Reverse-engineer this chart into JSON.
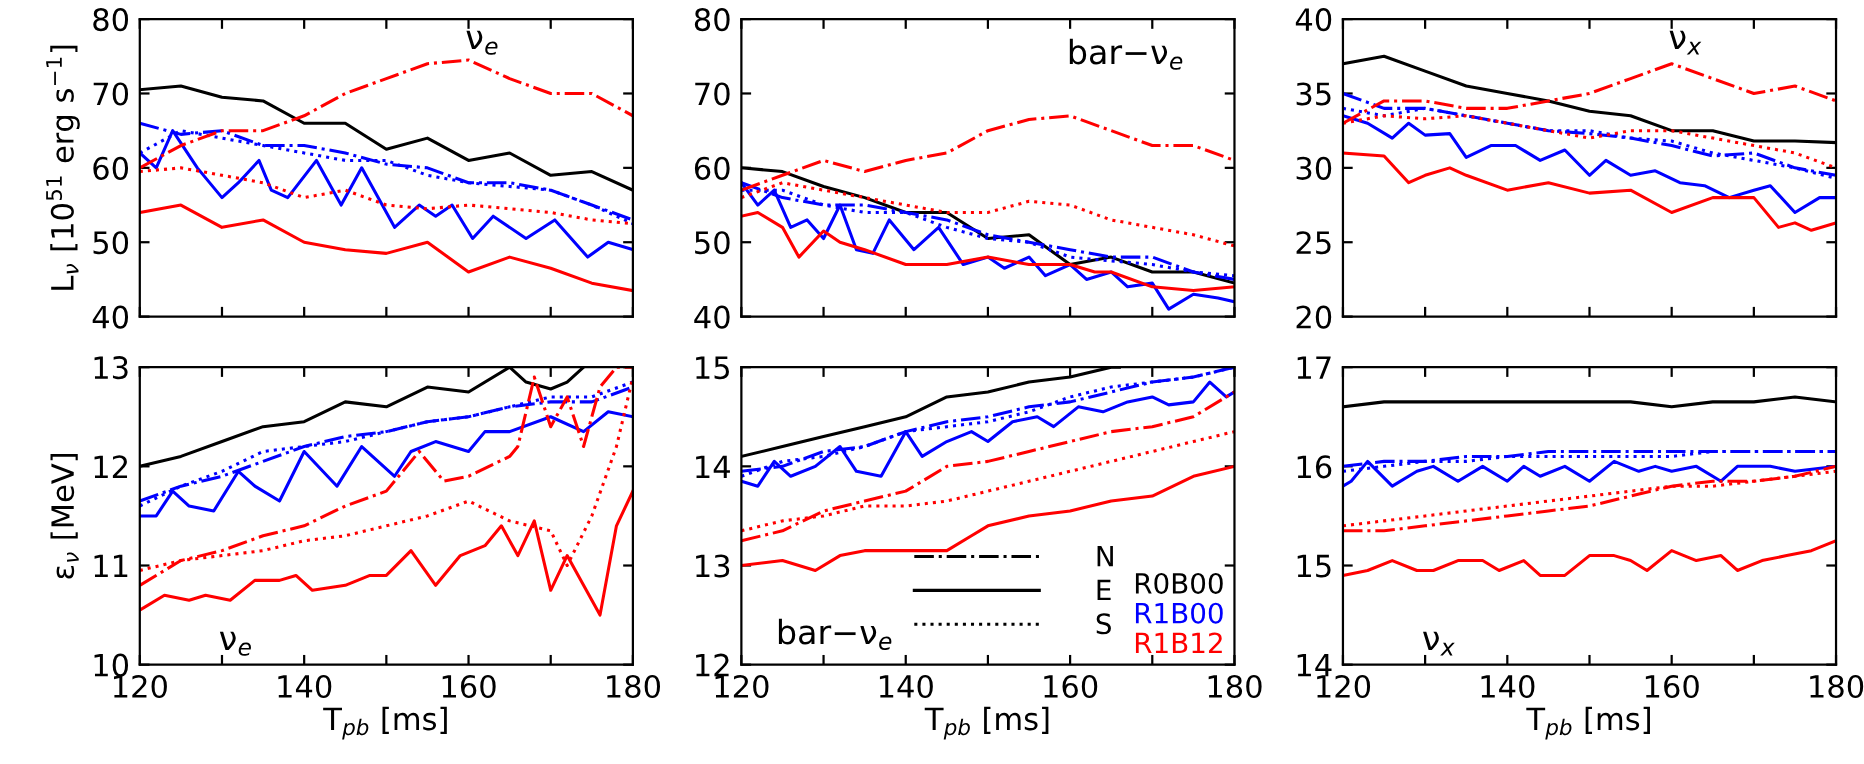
{
  "chart_data": [
    {
      "type": "line",
      "ylabel": "L$_{ν}$ [10$^{51}$ erg s$^{−1}$]",
      "annotations": [
        "ν$_{e}$"
      ],
      "x": [
        120,
        125,
        130,
        135,
        140,
        145,
        150,
        155,
        160,
        165,
        170,
        175,
        180
      ],
      "xlim": [
        120,
        180
      ],
      "xticks": [
        120,
        {
          "value": 130,
          "label": null
        },
        140,
        {
          "value": 150,
          "label": null
        },
        160,
        {
          "value": 170,
          "label": null
        },
        180
      ],
      "ylim": [
        40,
        80
      ],
      "yticks": [
        40,
        50,
        60,
        70,
        80
      ],
      "tick_labels": "y",
      "series": [
        {
          "color": "#000000",
          "line_style": "solid",
          "values": [
            70.5,
            71,
            69.5,
            69,
            66,
            66,
            62.5,
            64,
            61,
            62,
            59,
            59.5,
            57
          ]
        },
        {
          "color": "#0000ff",
          "line_style": "dashdot",
          "values": [
            66,
            64.5,
            65,
            63,
            63,
            62,
            60.5,
            60,
            58,
            58,
            57,
            55,
            53
          ]
        },
        {
          "color": "#0000ff",
          "line_style": "solid",
          "x": [
            120,
            122,
            124,
            127,
            130,
            132,
            134.5,
            136,
            138,
            141.5,
            144.5,
            147,
            151,
            154,
            156,
            158,
            160.5,
            163,
            167,
            170.5,
            174.5,
            177,
            180
          ],
          "values": [
            62,
            60,
            65,
            60,
            56,
            58,
            61,
            57,
            56,
            61,
            55,
            60,
            52,
            55,
            53.5,
            55,
            50.5,
            53.5,
            50.5,
            53,
            48,
            50,
            49
          ]
        },
        {
          "color": "#0000ff",
          "line_style": "dotted",
          "values": [
            62,
            65,
            64,
            63,
            62,
            61,
            61,
            59,
            58,
            57.5,
            57,
            55,
            52.5
          ]
        },
        {
          "color": "#ff0000",
          "line_style": "dashdot",
          "values": [
            60,
            63,
            65,
            65,
            67,
            70,
            72,
            74,
            74.5,
            72,
            70,
            70,
            67
          ]
        },
        {
          "color": "#ff0000",
          "line_style": "solid",
          "values": [
            54,
            55,
            52,
            53,
            50,
            49,
            48.5,
            50,
            46,
            48,
            46.5,
            44.5,
            43.5
          ]
        },
        {
          "color": "#ff0000",
          "line_style": "dotted",
          "values": [
            59.5,
            60,
            59,
            58,
            56,
            57,
            55,
            54.5,
            55,
            54.5,
            54,
            53,
            52.5
          ]
        }
      ]
    },
    {
      "type": "line",
      "annotations": [
        "bar−ν$_{e}$"
      ],
      "x": [
        120,
        125,
        130,
        135,
        140,
        145,
        150,
        155,
        160,
        165,
        170,
        175,
        180
      ],
      "xlim": [
        120,
        180
      ],
      "xticks": [
        120,
        {
          "value": 130,
          "label": null
        },
        140,
        {
          "value": 150,
          "label": null
        },
        160,
        {
          "value": 170,
          "label": null
        },
        180
      ],
      "ylim": [
        40,
        80
      ],
      "yticks": [
        40,
        50,
        60,
        70,
        80
      ],
      "tick_labels": "y",
      "series": [
        {
          "color": "#000000",
          "line_style": "solid",
          "values": [
            60,
            59.5,
            57.5,
            56,
            54,
            54,
            50.5,
            51,
            47,
            48,
            46,
            46,
            44.5
          ]
        },
        {
          "color": "#0000ff",
          "line_style": "dashdot",
          "values": [
            58,
            56,
            55,
            55,
            54,
            53,
            51,
            50,
            49,
            48,
            48,
            46,
            45
          ]
        },
        {
          "color": "#0000ff",
          "line_style": "solid",
          "x": [
            120,
            122,
            124,
            126,
            128,
            130,
            132,
            134,
            136,
            138,
            141,
            144,
            147,
            150,
            152,
            155,
            157,
            160,
            162,
            165,
            167,
            170,
            172,
            175,
            178,
            180
          ],
          "values": [
            58,
            55,
            57,
            52,
            53,
            50.5,
            55,
            49,
            48.5,
            53,
            49,
            52,
            47,
            48,
            46.5,
            48,
            45.5,
            47,
            45,
            46,
            44,
            44.5,
            41,
            43,
            42.5,
            42
          ]
        },
        {
          "color": "#0000ff",
          "line_style": "dotted",
          "values": [
            57,
            57,
            55,
            54,
            54,
            52,
            50.5,
            50,
            48,
            47.5,
            47,
            46,
            45.5
          ]
        },
        {
          "color": "#ff0000",
          "line_style": "dashdot",
          "values": [
            57,
            59,
            61,
            59.5,
            61,
            62,
            65,
            66.5,
            67,
            65,
            63,
            63,
            61
          ]
        },
        {
          "color": "#ff0000",
          "line_style": "solid",
          "x": [
            120,
            122,
            125,
            127,
            130,
            132,
            135,
            140,
            145,
            150,
            155,
            160,
            163,
            165,
            170,
            175,
            180
          ],
          "values": [
            53.5,
            54,
            52,
            48,
            51.5,
            50,
            49,
            47,
            47,
            48,
            47,
            47,
            46,
            46,
            44,
            43.5,
            44
          ]
        },
        {
          "color": "#ff0000",
          "line_style": "dotted",
          "values": [
            56,
            58,
            57,
            56,
            55,
            54,
            54,
            55.5,
            55,
            53,
            52,
            51,
            49.5
          ]
        }
      ]
    },
    {
      "type": "line",
      "annotations": [
        "ν$_{x}$"
      ],
      "x": [
        120,
        125,
        130,
        135,
        140,
        145,
        150,
        155,
        160,
        165,
        170,
        175,
        180
      ],
      "xlim": [
        120,
        180
      ],
      "xticks": [
        120,
        {
          "value": 130,
          "label": null
        },
        140,
        {
          "value": 150,
          "label": null
        },
        160,
        {
          "value": 170,
          "label": null
        },
        180
      ],
      "ylim": [
        20,
        40
      ],
      "yticks": [
        20,
        25,
        30,
        35,
        40
      ],
      "tick_labels": "y",
      "series": [
        {
          "color": "#000000",
          "line_style": "solid",
          "values": [
            37,
            37.5,
            36.5,
            35.5,
            35,
            34.5,
            33.8,
            33.5,
            32.5,
            32.5,
            31.8,
            31.8,
            31.7
          ]
        },
        {
          "color": "#0000ff",
          "line_style": "dashdot",
          "values": [
            35,
            34,
            34,
            33.5,
            33,
            32.5,
            32.3,
            32,
            31.5,
            30.8,
            31,
            30,
            29.5
          ]
        },
        {
          "color": "#0000ff",
          "line_style": "solid",
          "x": [
            120,
            123,
            126,
            128,
            130,
            133,
            135,
            138,
            141,
            144,
            147,
            150,
            152,
            155,
            158,
            161,
            164,
            167,
            170,
            172,
            175,
            178,
            180
          ],
          "values": [
            33.5,
            33,
            32,
            33,
            32.2,
            32.3,
            30.7,
            31.5,
            31.5,
            30.5,
            31.2,
            29.5,
            30.5,
            29.5,
            29.8,
            29,
            28.8,
            28,
            28.5,
            28.8,
            27,
            28,
            28
          ]
        },
        {
          "color": "#0000ff",
          "line_style": "dotted",
          "values": [
            34,
            33.5,
            34,
            33.5,
            33,
            32.5,
            32.5,
            32,
            31.8,
            31,
            30.5,
            30,
            29.3
          ]
        },
        {
          "color": "#ff0000",
          "line_style": "dashdot",
          "values": [
            33,
            34.5,
            34.5,
            34,
            34,
            34.5,
            35,
            36,
            37,
            36,
            35,
            35.5,
            34.5
          ]
        },
        {
          "color": "#ff0000",
          "line_style": "solid",
          "x": [
            120,
            125,
            128,
            130,
            133,
            135,
            140,
            145,
            150,
            155,
            160,
            165,
            170,
            173,
            175,
            177,
            180
          ],
          "values": [
            31,
            30.8,
            29,
            29.5,
            30,
            29.5,
            28.5,
            29,
            28.3,
            28.5,
            27,
            28,
            28,
            26,
            26.3,
            25.8,
            26.3
          ]
        },
        {
          "color": "#ff0000",
          "line_style": "dotted",
          "values": [
            33,
            33.5,
            33.3,
            33.5,
            33,
            32.5,
            32,
            32.5,
            32.5,
            32,
            31.5,
            31,
            30
          ]
        }
      ]
    },
    {
      "type": "line",
      "xlabel": "T$_{pb}$ [ms]",
      "ylabel": "ε$_{ν}$ [MeV]",
      "annotations": [
        "ν$_{e}$"
      ],
      "x": [
        120,
        125,
        130,
        135,
        140,
        145,
        150,
        155,
        160,
        165,
        170,
        175,
        180
      ],
      "xlim": [
        120,
        180
      ],
      "xticks": [
        120,
        {
          "value": 130,
          "label": null
        },
        140,
        {
          "value": 150,
          "label": null
        },
        160,
        {
          "value": 170,
          "label": null
        },
        180
      ],
      "ylim": [
        10,
        13
      ],
      "yticks": [
        10,
        11,
        12,
        13
      ],
      "series": [
        {
          "color": "#000000",
          "line_style": "solid",
          "x": [
            120,
            125,
            130,
            135,
            140,
            145,
            150,
            155,
            160,
            165,
            167,
            170,
            172,
            174
          ],
          "values": [
            12.0,
            12.1,
            12.25,
            12.4,
            12.45,
            12.65,
            12.6,
            12.8,
            12.75,
            13.0,
            12.85,
            12.78,
            12.85,
            13.0
          ]
        },
        {
          "color": "#0000ff",
          "line_style": "dashdot",
          "values": [
            11.65,
            11.8,
            11.9,
            12.05,
            12.2,
            12.3,
            12.35,
            12.45,
            12.5,
            12.6,
            12.65,
            12.65,
            12.8
          ]
        },
        {
          "color": "#0000ff",
          "line_style": "solid",
          "x": [
            120,
            122,
            124,
            126,
            129,
            132,
            134,
            137,
            140,
            144,
            147,
            151,
            153,
            156,
            160,
            162,
            165,
            170,
            174,
            177,
            180
          ],
          "values": [
            11.5,
            11.5,
            11.75,
            11.6,
            11.55,
            11.95,
            11.8,
            11.65,
            12.15,
            11.8,
            12.2,
            11.9,
            12.15,
            12.25,
            12.15,
            12.35,
            12.35,
            12.5,
            12.35,
            12.55,
            12.5
          ]
        },
        {
          "color": "#0000ff",
          "line_style": "dotted",
          "values": [
            11.6,
            11.8,
            11.95,
            12.15,
            12.2,
            12.25,
            12.35,
            12.45,
            12.5,
            12.6,
            12.7,
            12.7,
            12.85
          ]
        },
        {
          "color": "#ff0000",
          "line_style": "dashdot",
          "x": [
            120,
            125,
            130,
            135,
            140,
            145,
            150,
            154,
            157,
            160,
            165,
            166,
            168,
            170,
            172,
            174,
            176,
            178,
            180
          ],
          "values": [
            10.8,
            11.05,
            11.15,
            11.3,
            11.4,
            11.6,
            11.75,
            12.15,
            11.85,
            11.9,
            12.1,
            12.2,
            12.9,
            12.4,
            12.7,
            12.2,
            12.8,
            13.0,
            13.0
          ]
        },
        {
          "color": "#ff0000",
          "line_style": "solid",
          "x": [
            120,
            123,
            126,
            128,
            131,
            134,
            137,
            139,
            141,
            145,
            148,
            150,
            153,
            156,
            159,
            162,
            164,
            166,
            168,
            170,
            172,
            174,
            176,
            178,
            180
          ],
          "values": [
            10.55,
            10.7,
            10.65,
            10.7,
            10.65,
            10.85,
            10.85,
            10.9,
            10.75,
            10.8,
            10.9,
            10.9,
            11.15,
            10.8,
            11.1,
            11.2,
            11.4,
            11.1,
            11.45,
            10.75,
            11.1,
            10.8,
            10.5,
            11.4,
            11.75
          ]
        },
        {
          "color": "#ff0000",
          "line_style": "dotted",
          "x": [
            120,
            125,
            130,
            135,
            140,
            145,
            150,
            155,
            160,
            165,
            170,
            172,
            175,
            178,
            180
          ],
          "values": [
            10.95,
            11.05,
            11.1,
            11.15,
            11.25,
            11.3,
            11.4,
            11.5,
            11.65,
            11.45,
            11.35,
            11.0,
            11.5,
            12.2,
            12.9
          ]
        }
      ]
    },
    {
      "type": "line",
      "xlabel": "T$_{pb}$ [ms]",
      "annotations": [
        "bar−ν$_{e}$",
        "N",
        "E",
        "S",
        "R0B00",
        "R1B00",
        "R1B12"
      ],
      "x": [
        120,
        125,
        130,
        135,
        140,
        145,
        150,
        155,
        160,
        165,
        170,
        175,
        180
      ],
      "xlim": [
        120,
        180
      ],
      "xticks": [
        120,
        {
          "value": 130,
          "label": null
        },
        140,
        {
          "value": 150,
          "label": null
        },
        160,
        {
          "value": 170,
          "label": null
        },
        180
      ],
      "ylim": [
        12,
        15
      ],
      "yticks": [
        12,
        13,
        14,
        15
      ],
      "series": [
        {
          "color": "#000000",
          "line_style": "solid",
          "x": [
            120,
            125,
            130,
            135,
            140,
            145,
            150,
            155,
            160,
            165,
            166
          ],
          "values": [
            14.1,
            14.2,
            14.3,
            14.4,
            14.5,
            14.7,
            14.75,
            14.85,
            14.9,
            15.0,
            15.0
          ]
        },
        {
          "color": "#0000ff",
          "line_style": "dashdot",
          "values": [
            13.95,
            14.0,
            14.15,
            14.2,
            14.35,
            14.45,
            14.5,
            14.6,
            14.65,
            14.75,
            14.85,
            14.9,
            15.0
          ]
        },
        {
          "color": "#0000ff",
          "line_style": "solid",
          "x": [
            120,
            122,
            124,
            126,
            129,
            132,
            134,
            137,
            140,
            142,
            145,
            148,
            150,
            153,
            156,
            158,
            161,
            164,
            167,
            170,
            172,
            175,
            177,
            179,
            180
          ],
          "values": [
            13.85,
            13.8,
            14.05,
            13.9,
            14.0,
            14.2,
            13.95,
            13.9,
            14.35,
            14.1,
            14.25,
            14.35,
            14.25,
            14.45,
            14.5,
            14.4,
            14.6,
            14.55,
            14.65,
            14.7,
            14.62,
            14.65,
            14.85,
            14.7,
            14.75
          ]
        },
        {
          "color": "#0000ff",
          "line_style": "dotted",
          "values": [
            13.9,
            14.05,
            14.1,
            14.2,
            14.35,
            14.4,
            14.45,
            14.55,
            14.7,
            14.8,
            14.85,
            14.9,
            15.0
          ]
        },
        {
          "color": "#ff0000",
          "line_style": "dashdot",
          "values": [
            13.25,
            13.35,
            13.55,
            13.65,
            13.75,
            14.0,
            14.05,
            14.15,
            14.25,
            14.35,
            14.4,
            14.5,
            14.75
          ]
        },
        {
          "color": "#ff0000",
          "line_style": "solid",
          "x": [
            120,
            125,
            129,
            132,
            135,
            140,
            145,
            148,
            150,
            155,
            160,
            165,
            170,
            175,
            180
          ],
          "values": [
            13.0,
            13.05,
            12.95,
            13.1,
            13.15,
            13.15,
            13.15,
            13.3,
            13.4,
            13.5,
            13.55,
            13.65,
            13.7,
            13.9,
            14.0
          ]
        },
        {
          "color": "#ff0000",
          "line_style": "dotted",
          "values": [
            13.35,
            13.45,
            13.5,
            13.6,
            13.6,
            13.65,
            13.75,
            13.85,
            13.95,
            14.05,
            14.15,
            14.25,
            14.35
          ]
        }
      ]
    },
    {
      "type": "line",
      "xlabel": "T$_{pb}$ [ms]",
      "annotations": [
        "ν$_{x}$"
      ],
      "x": [
        120,
        125,
        130,
        135,
        140,
        145,
        150,
        155,
        160,
        165,
        170,
        175,
        180
      ],
      "xlim": [
        120,
        180
      ],
      "xticks": [
        120,
        {
          "value": 130,
          "label": null
        },
        140,
        {
          "value": 150,
          "label": null
        },
        160,
        {
          "value": 170,
          "label": null
        },
        180
      ],
      "ylim": [
        14,
        17
      ],
      "yticks": [
        14,
        15,
        16,
        17
      ],
      "series": [
        {
          "color": "#000000",
          "line_style": "solid",
          "values": [
            16.6,
            16.65,
            16.65,
            16.65,
            16.65,
            16.65,
            16.65,
            16.65,
            16.6,
            16.65,
            16.65,
            16.7,
            16.65
          ]
        },
        {
          "color": "#0000ff",
          "line_style": "dashdot",
          "values": [
            16.0,
            16.05,
            16.05,
            16.1,
            16.1,
            16.15,
            16.15,
            16.15,
            16.15,
            16.15,
            16.15,
            16.15,
            16.15
          ]
        },
        {
          "color": "#0000ff",
          "line_style": "solid",
          "x": [
            120,
            121,
            123,
            126,
            129,
            131,
            134,
            137,
            140,
            142,
            144,
            147,
            150,
            153,
            156,
            158,
            160,
            163,
            166,
            168,
            172,
            175,
            180
          ],
          "values": [
            15.8,
            15.85,
            16.05,
            15.8,
            15.95,
            16.0,
            15.85,
            16.0,
            15.85,
            16.0,
            15.9,
            16.0,
            15.85,
            16.05,
            15.95,
            16.0,
            15.95,
            16.0,
            15.85,
            16.0,
            16.0,
            15.95,
            16.0
          ]
        },
        {
          "color": "#0000ff",
          "line_style": "dotted",
          "values": [
            15.95,
            16.0,
            16.05,
            16.05,
            16.1,
            16.1,
            16.1,
            16.1,
            16.1,
            16.15,
            16.15,
            16.15,
            16.15
          ]
        },
        {
          "color": "#ff0000",
          "line_style": "dashdot",
          "values": [
            15.35,
            15.35,
            15.4,
            15.45,
            15.5,
            15.55,
            15.6,
            15.7,
            15.8,
            15.85,
            15.85,
            15.9,
            16.0
          ]
        },
        {
          "color": "#ff0000",
          "line_style": "solid",
          "x": [
            120,
            123,
            126,
            129,
            131,
            134,
            137,
            139,
            142,
            144,
            147,
            150,
            153,
            155,
            157,
            160,
            163,
            166,
            168,
            171,
            174,
            177,
            180
          ],
          "values": [
            14.9,
            14.95,
            15.05,
            14.95,
            14.95,
            15.05,
            15.05,
            14.95,
            15.05,
            14.9,
            14.9,
            15.1,
            15.1,
            15.05,
            14.95,
            15.15,
            15.05,
            15.1,
            14.95,
            15.05,
            15.1,
            15.15,
            15.25
          ]
        },
        {
          "color": "#ff0000",
          "line_style": "dotted",
          "values": [
            15.4,
            15.45,
            15.5,
            15.55,
            15.6,
            15.65,
            15.7,
            15.75,
            15.8,
            15.8,
            15.85,
            15.9,
            15.95
          ]
        }
      ]
    }
  ]
}
